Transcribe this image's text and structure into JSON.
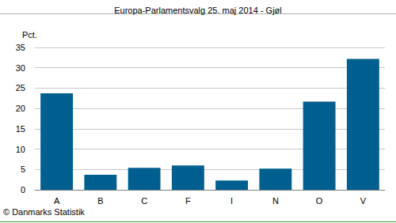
{
  "chart_data": {
    "type": "bar",
    "title": "Europa-Parlamentsvalg 25. maj 2014 - Gjøl",
    "y_label": "Pct.",
    "annotation": "© Danmarks Statistik",
    "categories": [
      "A",
      "B",
      "C",
      "F",
      "I",
      "N",
      "O",
      "V"
    ],
    "values": [
      23.7,
      3.7,
      5.4,
      6.0,
      2.3,
      5.2,
      21.7,
      32.2
    ],
    "color": "#005f8e",
    "ylim": [
      0,
      35
    ],
    "yticks": [
      0,
      5,
      10,
      15,
      20,
      25,
      30,
      35
    ],
    "grid": true
  }
}
